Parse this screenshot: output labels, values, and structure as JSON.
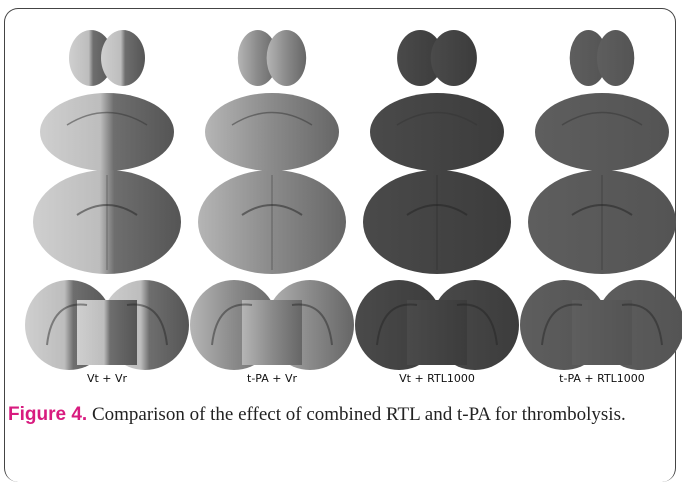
{
  "figure": {
    "columns": [
      "Vt + Vr",
      "t-PA + Vr",
      "Vt + RTL1000",
      "t-PA + RTL1000"
    ],
    "label": "Figure 4.",
    "caption": "Comparison of the effect of combined RTL and t-PA  for thrombolysis."
  }
}
